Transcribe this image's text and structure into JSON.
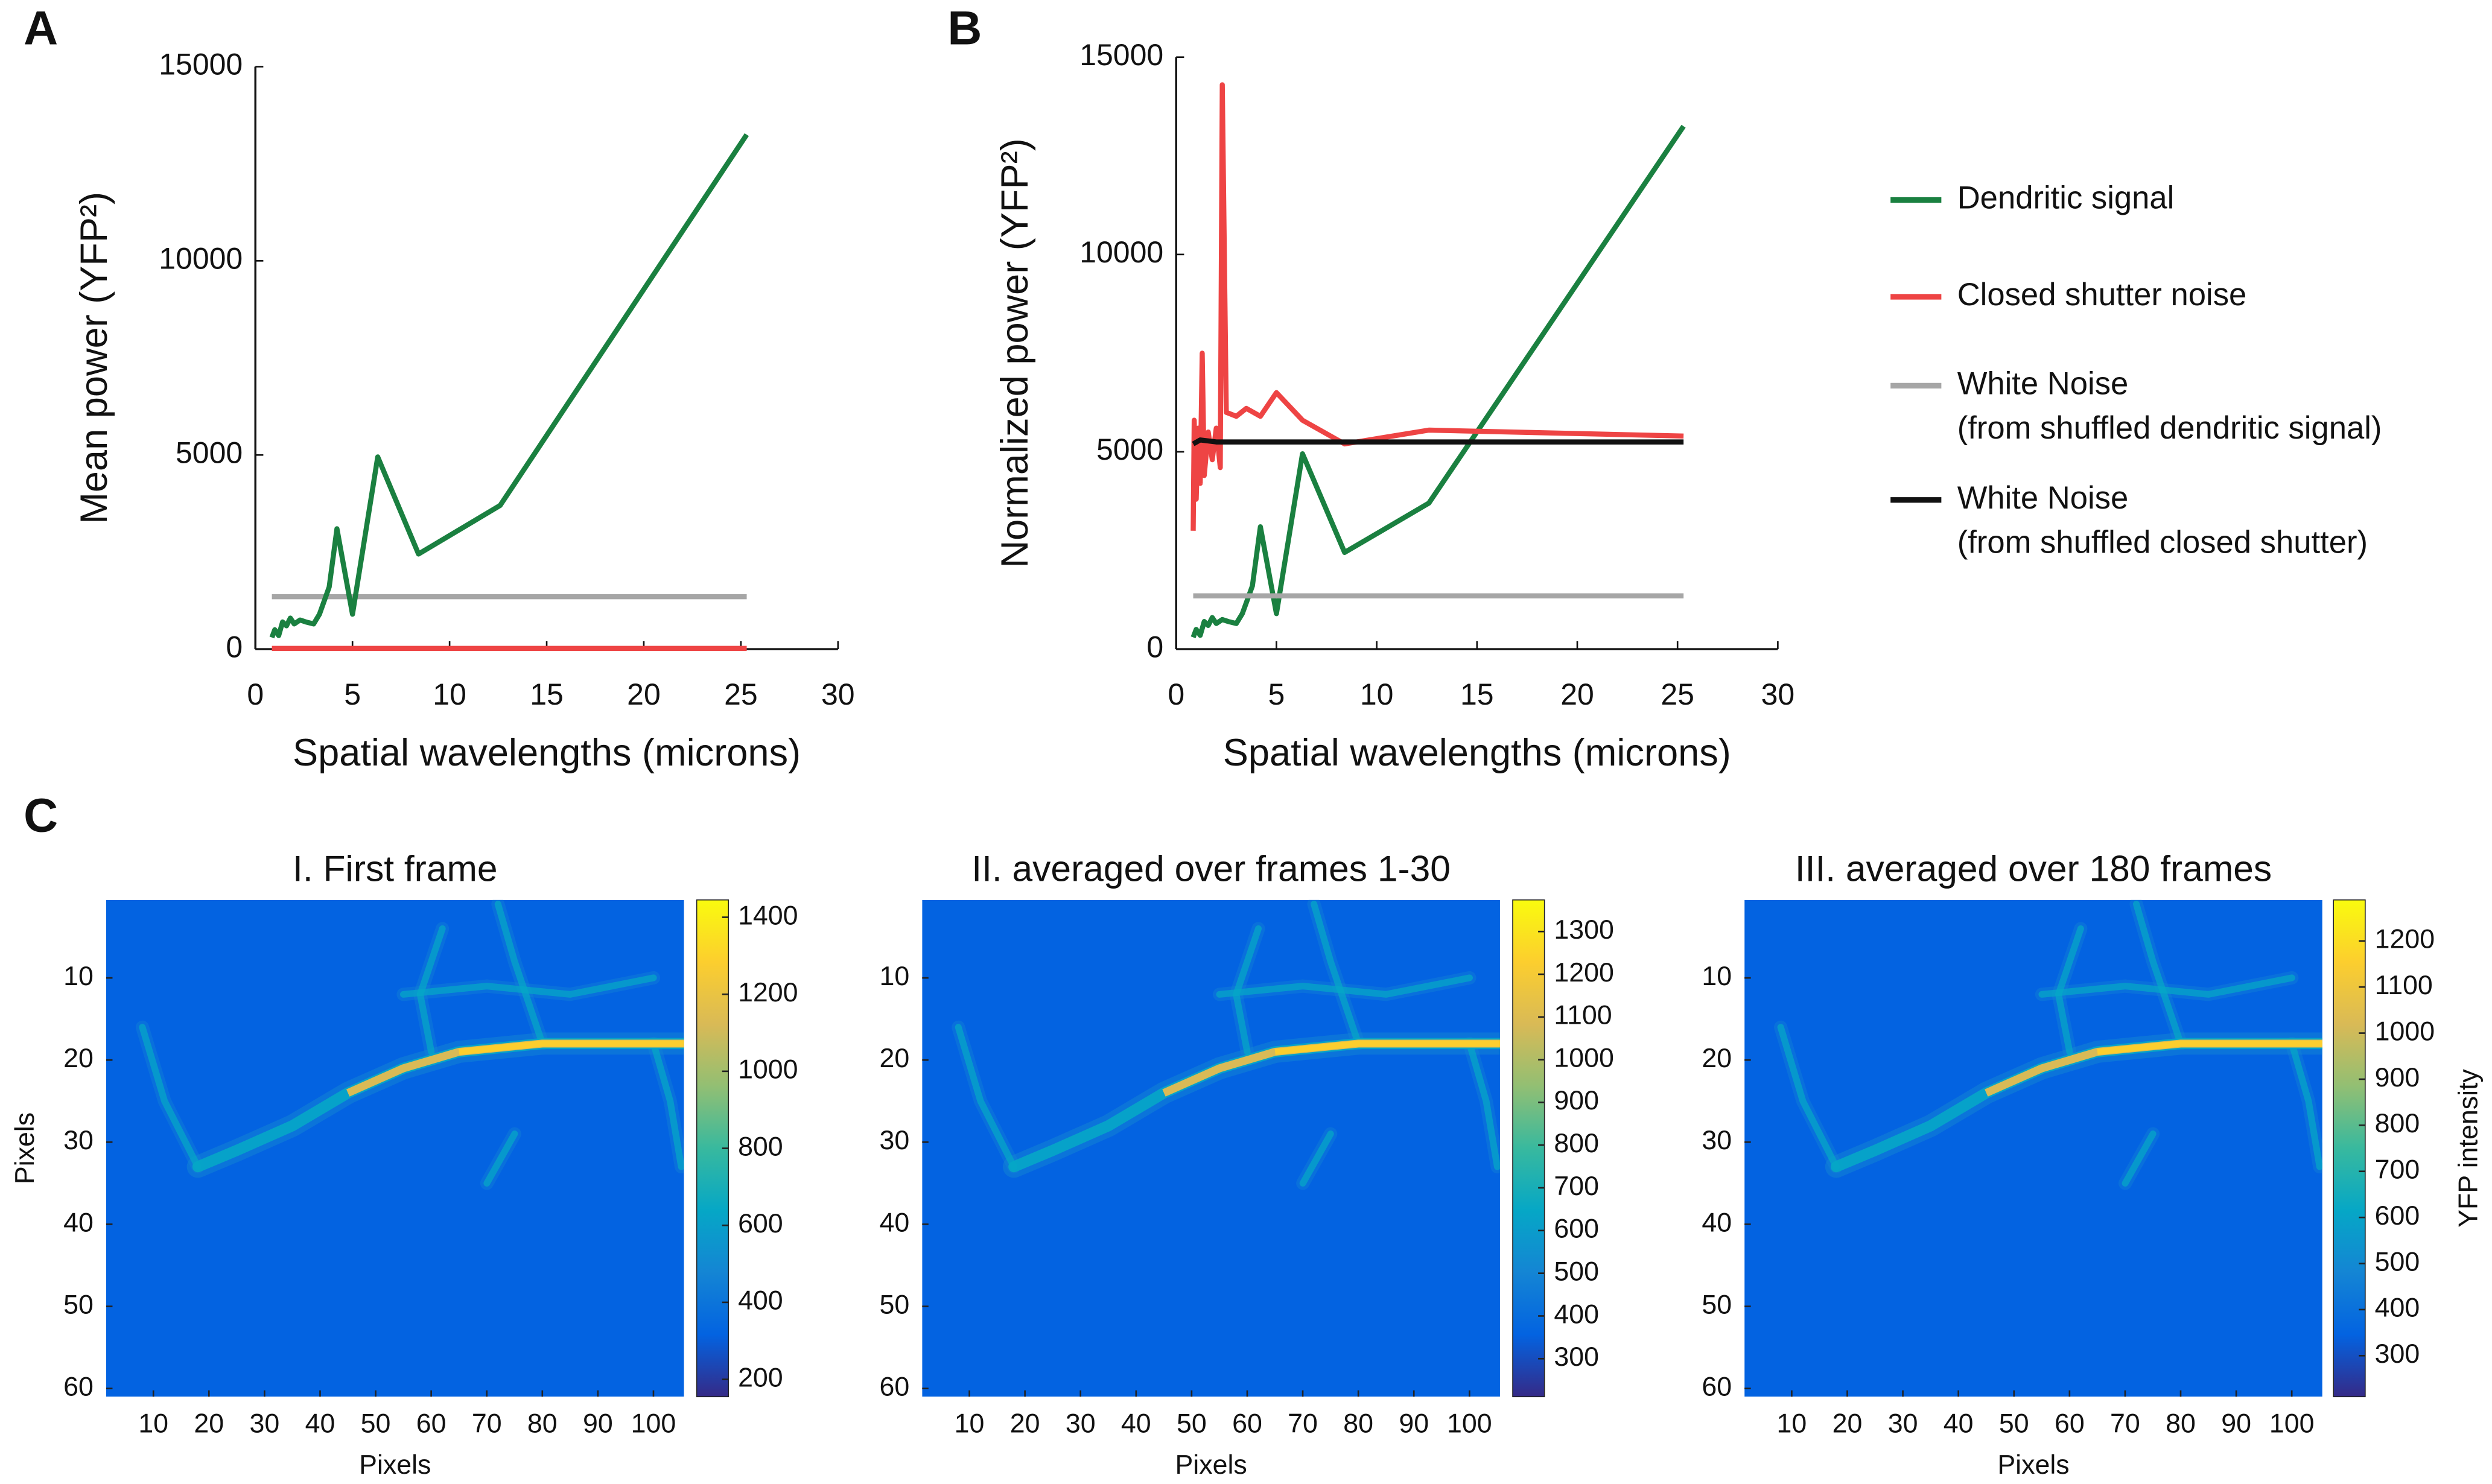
{
  "chart_data": [
    {
      "type": "line",
      "panel_label": "A",
      "xlabel": "Spatial wavelengths (microns)",
      "ylabel": "Mean power (YFP²)",
      "xlim": [
        0,
        30
      ],
      "ylim": [
        0,
        15000
      ],
      "xticks": [
        0,
        5,
        10,
        15,
        20,
        25,
        30
      ],
      "yticks": [
        0,
        5000,
        10000,
        15000
      ],
      "series": [
        {
          "color": "#a6a6a6",
          "x": [
            0.85,
            25.3
          ],
          "values": [
            1350,
            1350
          ]
        },
        {
          "color": "#ee4444",
          "x": [
            0.85,
            25.3
          ],
          "values": [
            20,
            20
          ]
        },
        {
          "color": "#1a8040",
          "x": [
            0.85,
            1.0,
            1.2,
            1.4,
            1.6,
            1.8,
            2.0,
            2.3,
            2.6,
            3.0,
            3.3,
            3.8,
            4.2,
            5.0,
            6.3,
            8.4,
            12.6,
            25.3
          ],
          "values": [
            300,
            500,
            350,
            700,
            600,
            800,
            650,
            750,
            700,
            650,
            900,
            1600,
            3100,
            900,
            4950,
            2450,
            3700,
            13250
          ]
        }
      ]
    },
    {
      "type": "line",
      "panel_label": "B",
      "xlabel": "Spatial wavelengths (microns)",
      "ylabel": "Normalized power (YFP²)",
      "xlim": [
        0,
        30
      ],
      "ylim": [
        0,
        15000
      ],
      "xticks": [
        0,
        5,
        10,
        15,
        20,
        25,
        30
      ],
      "yticks": [
        0,
        5000,
        10000,
        15000
      ],
      "series": [
        {
          "name": "Dendritic signal",
          "color": "#1a8040",
          "x": [
            0.85,
            1.0,
            1.2,
            1.4,
            1.6,
            1.8,
            2.0,
            2.3,
            2.6,
            3.0,
            3.3,
            3.8,
            4.2,
            5.0,
            6.3,
            8.4,
            12.6,
            25.3
          ],
          "values": [
            300,
            500,
            350,
            700,
            600,
            800,
            650,
            750,
            700,
            650,
            900,
            1600,
            3100,
            900,
            4950,
            2450,
            3700,
            13250
          ]
        },
        {
          "name": "Closed shutter noise",
          "color": "#ee4444",
          "x": [
            0.85,
            0.9,
            1.0,
            1.1,
            1.2,
            1.3,
            1.4,
            1.6,
            1.8,
            2.0,
            2.2,
            2.3,
            2.5,
            3.0,
            3.5,
            4.2,
            5.0,
            6.3,
            8.4,
            12.6,
            25.3
          ],
          "values": [
            3000,
            5800,
            3800,
            5600,
            4200,
            7500,
            4400,
            5500,
            4800,
            5600,
            4600,
            14300,
            6000,
            5900,
            6100,
            5900,
            6500,
            5800,
            5200,
            5550,
            5400
          ]
        },
        {
          "name": "White Noise\n(from shuffled dendritic signal)",
          "color": "#a6a6a6",
          "x": [
            0.85,
            25.3
          ],
          "values": [
            1350,
            1350
          ]
        },
        {
          "name": "White Noise\n(from shuffled closed shutter)",
          "color": "#111111",
          "x": [
            0.85,
            1.2,
            2.0,
            25.3
          ],
          "values": [
            5200,
            5300,
            5250,
            5250
          ]
        }
      ]
    },
    {
      "type": "heatmap",
      "panel_label": "C",
      "title": "I. First frame",
      "xlabel": "Pixels",
      "ylabel": "Pixels",
      "colormap": "parula",
      "xlim": [
        1.5,
        105.5
      ],
      "ylim": [
        0.5,
        61
      ],
      "xticks": [
        10,
        20,
        30,
        40,
        50,
        60,
        70,
        80,
        90,
        100
      ],
      "yticks": [
        10,
        20,
        30,
        40,
        50,
        60
      ],
      "clim": [
        155,
        1445
      ],
      "cticks": [
        200,
        400,
        600,
        800,
        1000,
        1200,
        1400
      ]
    },
    {
      "type": "heatmap",
      "title": "II. averaged over frames 1-30",
      "xlabel": "Pixels",
      "colormap": "parula",
      "xlim": [
        1.5,
        105.5
      ],
      "ylim": [
        0.5,
        61
      ],
      "xticks": [
        10,
        20,
        30,
        40,
        50,
        60,
        70,
        80,
        90,
        100
      ],
      "yticks": [
        10,
        20,
        30,
        40,
        50,
        60
      ],
      "clim": [
        211,
        1374
      ],
      "cticks": [
        300,
        400,
        500,
        600,
        700,
        800,
        900,
        1000,
        1100,
        1200,
        1300
      ]
    },
    {
      "type": "heatmap",
      "title": "III. averaged over 180 frames",
      "xlabel": "Pixels",
      "colormap": "parula",
      "clabel": "YFP intensity",
      "xlim": [
        1.5,
        105.5
      ],
      "ylim": [
        0.5,
        61
      ],
      "xticks": [
        10,
        20,
        30,
        40,
        50,
        60,
        70,
        80,
        90,
        100
      ],
      "yticks": [
        10,
        20,
        30,
        40,
        50,
        60
      ],
      "clim": [
        211,
        1289
      ],
      "cticks": [
        300,
        400,
        500,
        600,
        700,
        800,
        900,
        1000,
        1100,
        1200
      ]
    }
  ]
}
